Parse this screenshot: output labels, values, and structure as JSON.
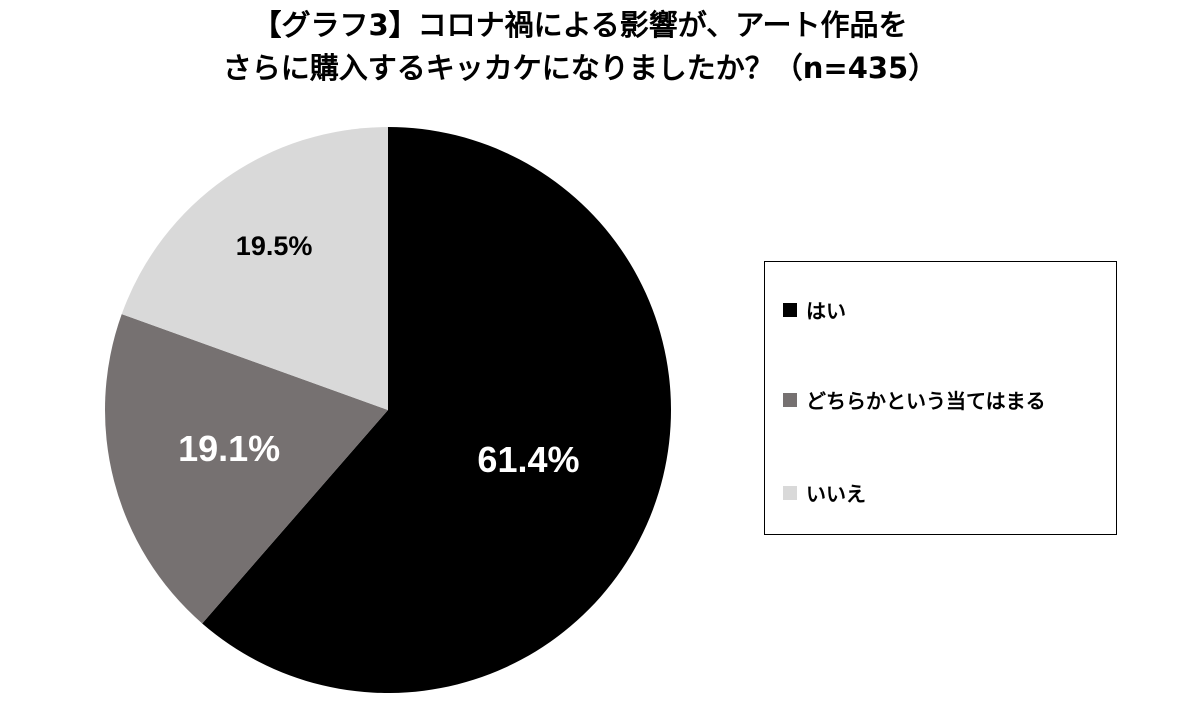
{
  "chart_data": {
    "type": "pie",
    "title_lines": [
      "【グラフ3】コロナ禍による影響が、アート作品を",
      "さらに購入するキッカケになりましたか？（n=435）"
    ],
    "categories": [
      "はい",
      "どちらかという当てはまる",
      "いいえ"
    ],
    "values": [
      61.4,
      19.1,
      19.5
    ],
    "data_labels": [
      "61.4%",
      "19.1%",
      "19.5%"
    ],
    "colors": [
      "#000000",
      "#767171",
      "#d9d9d9"
    ],
    "label_colors": [
      "#ffffff",
      "#ffffff",
      "#000000"
    ],
    "start_angle": "top, clockwise",
    "legend_position": "right"
  }
}
